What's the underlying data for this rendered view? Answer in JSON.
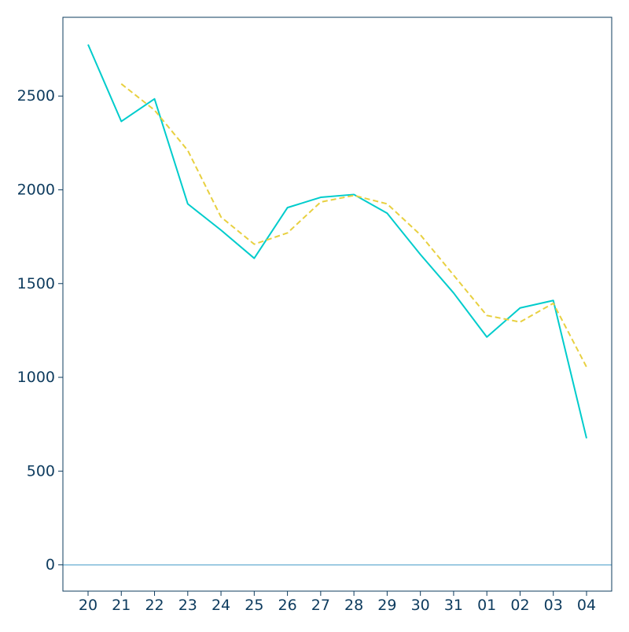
{
  "chart_data": {
    "type": "line",
    "categories": [
      "20",
      "21",
      "22",
      "23",
      "24",
      "25",
      "26",
      "27",
      "28",
      "29",
      "30",
      "31",
      "01",
      "02",
      "03",
      "04"
    ],
    "series": [
      {
        "color": "#00cccc",
        "style": "solid",
        "values": [
          2775,
          2365,
          2485,
          1925,
          1785,
          1635,
          1905,
          1960,
          1975,
          1875,
          1655,
          1450,
          1215,
          1370,
          1410,
          675
        ]
      },
      {
        "color": "#e8d040",
        "style": "dashed",
        "values": [
          null,
          2565,
          2425,
          2210,
          1855,
          1710,
          1770,
          1935,
          1970,
          1925,
          1760,
          1545,
          1330,
          1295,
          1395,
          1055
        ]
      }
    ],
    "yticks": [
      0,
      500,
      1000,
      1500,
      2000,
      2500
    ],
    "ylim": [
      -140,
      2920
    ],
    "zero_line": true,
    "zero_line_color": "#7ab8d8",
    "axis_color": "#0d3b5e",
    "title": "",
    "xlabel": "",
    "ylabel": "",
    "grid": false,
    "legend": "none"
  }
}
